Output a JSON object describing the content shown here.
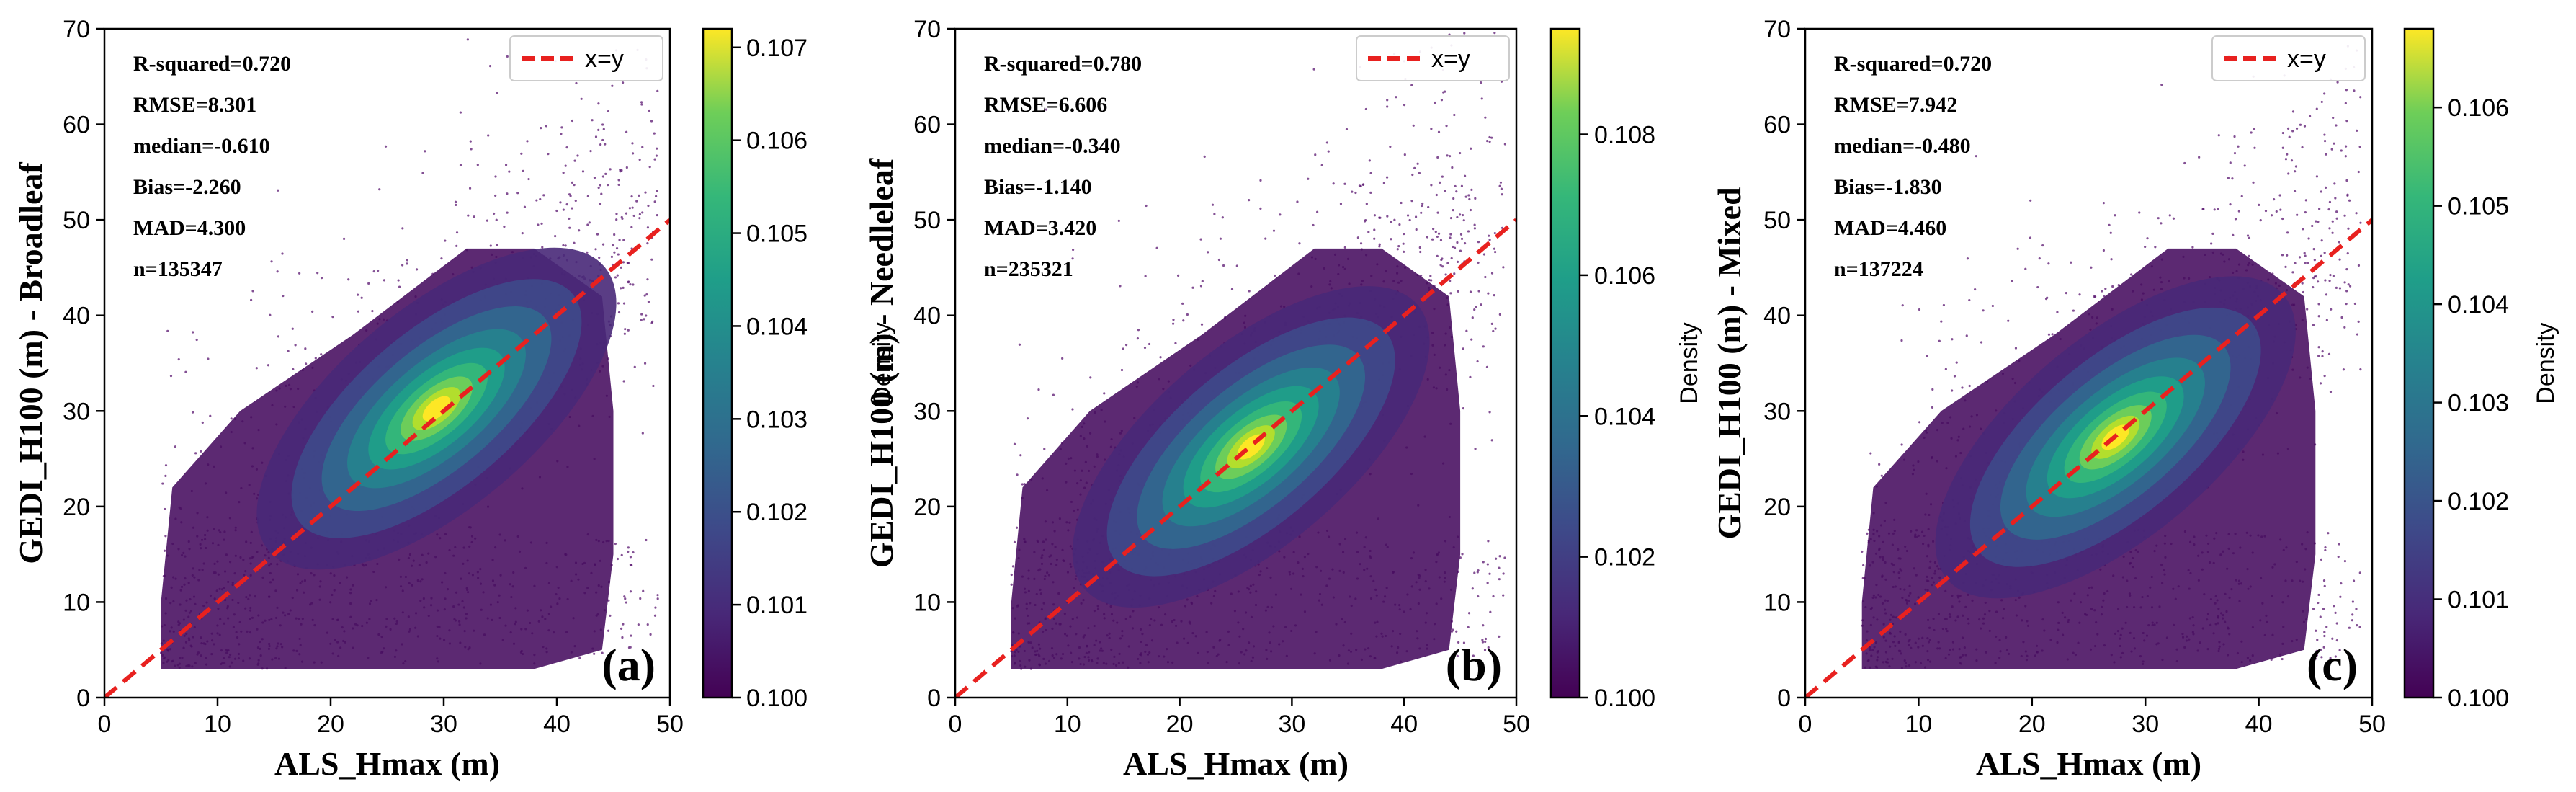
{
  "colorbar_label": "Density",
  "legend_label": "x=y",
  "chart_data": [
    {
      "type": "scatter",
      "panel_label": "(a)",
      "xlabel": "ALS_Hmax (m)",
      "ylabel": "GEDI_H100 (m) - Broadleaf",
      "xlim": [
        0,
        50
      ],
      "ylim": [
        0,
        70
      ],
      "xticks": [
        0,
        10,
        20,
        30,
        40,
        50
      ],
      "yticks": [
        0,
        10,
        20,
        30,
        40,
        50,
        60,
        70
      ],
      "reference_line": {
        "name": "x=y",
        "x": [
          0,
          50
        ],
        "y": [
          0,
          50
        ],
        "color": "#e8211f",
        "style": "dashed"
      },
      "stats": [
        "R-squared=0.720",
        "RMSE=8.301",
        "median=-0.610",
        "Bias=-2.260",
        "MAD=4.300",
        "n=135347"
      ],
      "density_peak": {
        "x": 30,
        "y": 31
      },
      "legend_position": "top-right",
      "grid": false,
      "colorbar": {
        "min": 0.1,
        "max": 0.1072,
        "ticks": [
          "0.100",
          "0.101",
          "0.102",
          "0.103",
          "0.104",
          "0.105",
          "0.106",
          "0.107"
        ]
      }
    },
    {
      "type": "scatter",
      "panel_label": "(b)",
      "xlabel": "ALS_Hmax (m)",
      "ylabel": "GEDI_H100 (m) - Needleleaf",
      "xlim": [
        0,
        50
      ],
      "ylim": [
        0,
        70
      ],
      "xticks": [
        0,
        10,
        20,
        30,
        40,
        50
      ],
      "yticks": [
        0,
        10,
        20,
        30,
        40,
        50,
        60,
        70
      ],
      "reference_line": {
        "name": "x=y",
        "x": [
          0,
          50
        ],
        "y": [
          0,
          50
        ],
        "color": "#e8211f",
        "style": "dashed"
      },
      "stats": [
        "R-squared=0.780",
        "RMSE=6.606",
        "median=-0.340",
        "Bias=-1.140",
        "MAD=3.420",
        "n=235321"
      ],
      "density_peak": {
        "x": 27,
        "y": 27
      },
      "legend_position": "top-right",
      "grid": false,
      "colorbar": {
        "min": 0.1,
        "max": 0.1095,
        "ticks": [
          "0.100",
          "0.102",
          "0.104",
          "0.106",
          "0.108"
        ]
      }
    },
    {
      "type": "scatter",
      "panel_label": "(c)",
      "xlabel": "ALS_Hmax (m)",
      "ylabel": "GEDI_H100 (m) - Mixed",
      "xlim": [
        0,
        50
      ],
      "ylim": [
        0,
        70
      ],
      "xticks": [
        0,
        10,
        20,
        30,
        40,
        50
      ],
      "yticks": [
        0,
        10,
        20,
        30,
        40,
        50,
        60,
        70
      ],
      "reference_line": {
        "name": "x=y",
        "x": [
          0,
          50
        ],
        "y": [
          0,
          50
        ],
        "color": "#e8211f",
        "style": "dashed"
      },
      "stats": [
        "R-squared=0.720",
        "RMSE=7.942",
        "median=-0.480",
        "Bias=-1.830",
        "MAD=4.460",
        "n=137224"
      ],
      "density_peak": {
        "x": 28,
        "y": 28
      },
      "legend_position": "top-right",
      "grid": false,
      "colorbar": {
        "min": 0.1,
        "max": 0.1068,
        "ticks": [
          "0.100",
          "0.101",
          "0.102",
          "0.103",
          "0.104",
          "0.105",
          "0.106"
        ]
      }
    }
  ]
}
